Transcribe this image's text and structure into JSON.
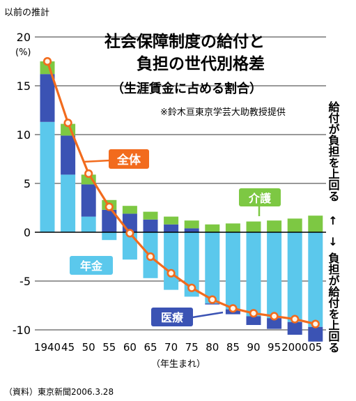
{
  "header_note": "以前の推計",
  "source": "（資料）東京新聞2006.3.28",
  "chart_data": {
    "type": "bar",
    "title": [
      "社会保障制度の給付と",
      "負担の世代別格差"
    ],
    "subtitle": "（生涯賃金に占める割合）",
    "credit": "※鈴木亘東京学芸大助教授提供",
    "y_unit": "(%)",
    "ylim": [
      -11,
      20
    ],
    "y_ticks": [
      20,
      15,
      10,
      5,
      0,
      -5,
      -10
    ],
    "grid": true,
    "x_tick_labels": [
      "1940",
      "45",
      "50",
      "55",
      "60",
      "65",
      "70",
      "75",
      "80",
      "85",
      "90",
      "95",
      "2000",
      "05"
    ],
    "xlabel": "（年生まれ）",
    "upper_side_label": "給付が負担を上回る",
    "lower_side_label": "負担が給付を上回る",
    "arrow_up": "↑",
    "arrow_down": "↓",
    "series": [
      {
        "name": "年金",
        "color": "#5bc8ec",
        "values": [
          11.3,
          5.9,
          1.6,
          -0.8,
          -2.8,
          -4.7,
          -5.9,
          -6.6,
          -7.3,
          -7.9,
          -8.6,
          -8.8,
          -9.2,
          -9.7
        ]
      },
      {
        "name": "医療",
        "color": "#3b53b4",
        "values": [
          4.9,
          4.0,
          3.3,
          2.3,
          1.9,
          1.3,
          0.8,
          0.4,
          -0.1,
          -0.5,
          -0.9,
          -1.1,
          -1.3,
          -1.5
        ]
      },
      {
        "name": "介護",
        "color": "#7dc843",
        "values": [
          1.3,
          1.2,
          1.0,
          1.0,
          0.8,
          0.8,
          0.8,
          0.8,
          0.8,
          0.9,
          1.1,
          1.2,
          1.4,
          1.7
        ]
      },
      {
        "name": "全体",
        "color": "#f26b1d",
        "type": "line",
        "values": [
          17.5,
          11.2,
          6.0,
          2.6,
          -0.1,
          -2.5,
          -4.2,
          -5.7,
          -6.9,
          -7.8,
          -8.3,
          -8.6,
          -8.9,
          -9.4
        ]
      }
    ]
  }
}
